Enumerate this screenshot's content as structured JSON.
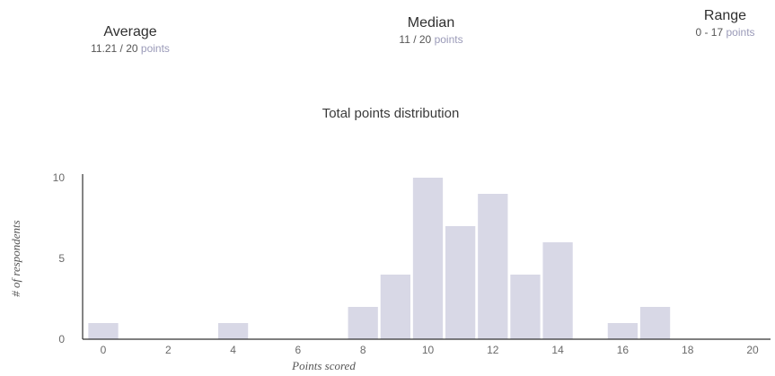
{
  "stats": {
    "average": {
      "title": "Average",
      "value": "11.21 / 20",
      "unit": "points"
    },
    "median": {
      "title": "Median",
      "value": "11 / 20",
      "unit": "points"
    },
    "range": {
      "title": "Range",
      "value": "0 - 17",
      "unit": "points"
    }
  },
  "chart_data": {
    "type": "bar",
    "title": "Total points distribution",
    "xlabel": "Points scored",
    "ylabel": "# of respondents",
    "xlim": [
      0,
      20
    ],
    "ylim": [
      0,
      10
    ],
    "x_ticks": [
      0,
      2,
      4,
      6,
      8,
      10,
      12,
      14,
      16,
      18,
      20
    ],
    "y_ticks": [
      0,
      5,
      10
    ],
    "grid": false,
    "categories": [
      0,
      4,
      8,
      9,
      10,
      11,
      12,
      13,
      14,
      16,
      17
    ],
    "values": [
      1,
      1,
      2,
      4,
      10,
      7,
      9,
      4,
      6,
      1,
      2
    ],
    "bar_color": "#d8d8e6"
  }
}
